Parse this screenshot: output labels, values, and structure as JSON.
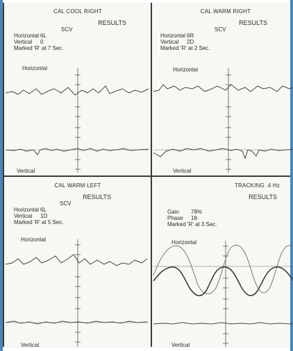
{
  "panels": [
    {
      "title": "CAL COOL RIGHT",
      "results_label": "RESULTS",
      "scv_label": "SCV",
      "rows": [
        {
          "key": "Horizontal",
          "value": "6L"
        },
        {
          "key": "Vertical",
          "value": "0"
        }
      ],
      "marked": "Marked 'R' at 7 Sec.",
      "h_label": "Horizontal",
      "v_label": "Vertical"
    },
    {
      "title": "CAL WARM RIGHT",
      "results_label": "RESULTS",
      "scv_label": "SCV",
      "rows": [
        {
          "key": "Horizontal",
          "value": "6R"
        },
        {
          "key": "Vertical",
          "value": "2D"
        }
      ],
      "marked": "Marked 'R' at 2 Sec.",
      "h_label": "Horizontal",
      "v_label": "Vertical"
    },
    {
      "title": "CAL WARM LEFT",
      "results_label": "RESULTS",
      "scv_label": "SCV",
      "rows": [
        {
          "key": "Horizontal",
          "value": "6L"
        },
        {
          "key": "Vertical",
          "value": "1D"
        }
      ],
      "marked": "Marked 'R' at 5 Sec.",
      "h_label": "Horizontal",
      "v_label": "Vertical"
    },
    {
      "title": "TRACKING .4 Hz",
      "results_label": "RESULTS",
      "scv_label": "",
      "rows": [
        {
          "key": "Gain",
          "value": "78%"
        },
        {
          "key": "Phase",
          "value": "18"
        }
      ],
      "marked": "Marked 'R' at 3 Sec.",
      "h_label": "Horizontal",
      "v_label": "Vertical"
    }
  ],
  "colors": {
    "border": "#3a3a3a",
    "accent_edge": "#4b86b8",
    "trace": "#444444"
  }
}
